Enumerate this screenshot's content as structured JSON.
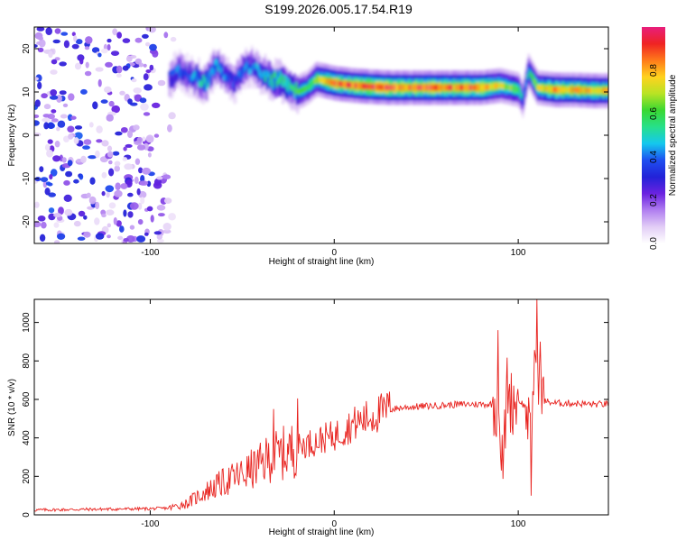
{
  "title": "S199.2026.005.17.54.R19",
  "chart_data": [
    {
      "type": "heatmap",
      "title": "S199.2026.005.17.54.R19",
      "xlabel": "Height of straight line (km)",
      "ylabel": "Frequency (Hz)",
      "xlim": [
        -163,
        149
      ],
      "ylim": [
        -25,
        25
      ],
      "xticks": [
        -100,
        0,
        100
      ],
      "xtick_labels": [
        "-100",
        "0",
        "100"
      ],
      "yticks": [
        -20,
        -10,
        0,
        10,
        20
      ],
      "ytick_labels": [
        "-20",
        "-10",
        "0",
        "10",
        "20"
      ],
      "colorbar": {
        "label": "Normalized spectral amplitude",
        "range": [
          0.0,
          1.0
        ],
        "ticks": [
          0.0,
          0.2,
          0.4,
          0.6,
          0.8
        ],
        "tick_labels": [
          "0.0",
          "0.2",
          "0.4",
          "0.6",
          "0.8"
        ],
        "colormap": [
          "#ffffff",
          "#e2cdf6",
          "#b07ef0",
          "#6a22e0",
          "#2222d8",
          "#1e4ff0",
          "#14c8ee",
          "#27e08a",
          "#3ad832",
          "#b8e324",
          "#ffd21e",
          "#ff7a1a",
          "#ef2323",
          "#e81e7c"
        ]
      },
      "ridge": {
        "x": [
          -90,
          -85,
          -80,
          -75,
          -70,
          -65,
          -60,
          -55,
          -50,
          -45,
          -40,
          -35,
          -30,
          -25,
          -20,
          -15,
          -10,
          -5,
          0,
          10,
          20,
          30,
          40,
          50,
          60,
          70,
          80,
          90,
          95,
          100,
          102,
          105,
          110,
          120,
          130,
          140,
          149
        ],
        "freq": [
          13,
          15,
          14,
          13,
          12,
          16,
          14,
          12,
          15,
          16,
          14,
          13,
          12.5,
          11,
          10,
          11,
          13,
          12.5,
          12,
          11.5,
          11.2,
          11,
          11,
          11,
          11,
          11,
          11,
          11.5,
          11,
          10.5,
          8,
          15,
          11,
          10.5,
          10.5,
          10.3,
          10.3
        ],
        "amplitude": [
          0.35,
          0.4,
          0.35,
          0.45,
          0.5,
          0.45,
          0.4,
          0.35,
          0.45,
          0.4,
          0.45,
          0.55,
          0.6,
          0.55,
          0.6,
          0.55,
          0.7,
          0.8,
          0.85,
          0.85,
          0.9,
          0.9,
          0.85,
          0.9,
          0.85,
          0.85,
          0.85,
          0.7,
          0.65,
          0.6,
          0.4,
          0.5,
          0.7,
          0.8,
          0.8,
          0.8,
          0.8
        ]
      },
      "noise_region": {
        "x_from": -163,
        "x_to": -85,
        "freq_from": -25,
        "freq_to": 25,
        "amplitude_max": 0.4
      }
    },
    {
      "type": "line",
      "xlabel": "Height of straight line (km)",
      "ylabel": "SNR (10 * v/v)",
      "xlim": [
        -163,
        149
      ],
      "ylim": [
        0,
        1120
      ],
      "xticks": [
        -100,
        0,
        100
      ],
      "xtick_labels": [
        "-100",
        "0",
        "100"
      ],
      "yticks": [
        0,
        200,
        400,
        600,
        800,
        1000
      ],
      "ytick_labels": [
        "0",
        "200",
        "400",
        "600",
        "800",
        "1000"
      ],
      "series": [
        {
          "name": "SNR",
          "color": "#e8221e",
          "x": [
            -163,
            -140,
            -120,
            -100,
            -90,
            -80,
            -70,
            -60,
            -50,
            -40,
            -35,
            -30,
            -25,
            -20,
            -15,
            -10,
            -5,
            0,
            5,
            10,
            15,
            20,
            25,
            30,
            35,
            40,
            50,
            60,
            70,
            80,
            85,
            88,
            90,
            92,
            94,
            96,
            98,
            100,
            102,
            105,
            107,
            108,
            110,
            112,
            115,
            120,
            130,
            140,
            149
          ],
          "y": [
            25,
            28,
            30,
            32,
            35,
            60,
            120,
            170,
            210,
            260,
            300,
            310,
            330,
            350,
            370,
            380,
            400,
            410,
            440,
            470,
            490,
            510,
            530,
            545,
            555,
            560,
            565,
            570,
            575,
            575,
            575,
            580,
            500,
            250,
            700,
            580,
            600,
            600,
            580,
            550,
            300,
            700,
            900,
            600,
            590,
            580,
            580,
            575,
            575
          ],
          "spikes": [
            {
              "x": -33,
              "y": 550
            },
            {
              "x": -20,
              "y": 605
            },
            {
              "x": 30,
              "y": 640
            },
            {
              "x": 89,
              "y": 960
            },
            {
              "x": 91,
              "y": 230
            },
            {
              "x": 107,
              "y": 100
            },
            {
              "x": 110,
              "y": 1120
            },
            {
              "x": 112,
              "y": 900
            }
          ]
        }
      ]
    }
  ]
}
